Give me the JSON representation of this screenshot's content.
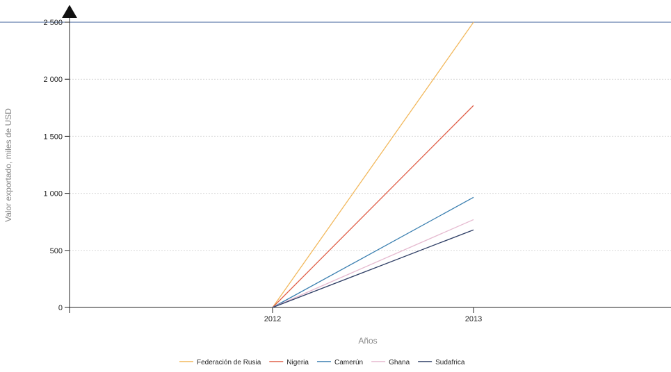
{
  "chart_data": {
    "type": "line",
    "xlabel": "Años",
    "ylabel": "Valor exportado, miles de USD",
    "categories": [
      "2012",
      "2013"
    ],
    "ylim": [
      0,
      2500
    ],
    "yticks": [
      0,
      500,
      1000,
      1500,
      2000,
      2500
    ],
    "ytick_labels": [
      "0",
      "500",
      "1 000",
      "1 500",
      "2 000",
      "2 500"
    ],
    "grid": "horizontal-dotted",
    "legend_position": "bottom",
    "series": [
      {
        "name": "Federación de Rusia",
        "color": "#f2b85c",
        "values": [
          0,
          2500
        ]
      },
      {
        "name": "Nigeria",
        "color": "#e0604a",
        "values": [
          0,
          1770
        ]
      },
      {
        "name": "Camerún",
        "color": "#3a7fb0",
        "values": [
          0,
          965
        ]
      },
      {
        "name": "Ghana",
        "color": "#e5b9cf",
        "values": [
          0,
          770
        ]
      },
      {
        "name": "Sudafrica",
        "color": "#2f3f66",
        "values": [
          0,
          680
        ]
      }
    ]
  }
}
